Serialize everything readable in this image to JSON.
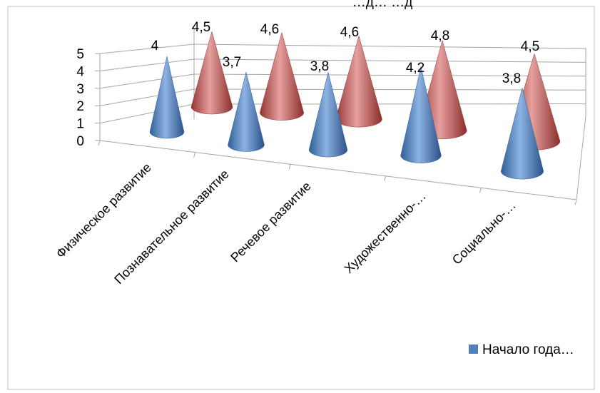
{
  "chart_data": {
    "type": "bar",
    "style": "3d-cone",
    "title": "…д… …д",
    "categories": [
      "Физическое развитие",
      "Познавательное развитие",
      "Речевое развитие",
      "Художественно-…",
      "Социально-…"
    ],
    "series": [
      {
        "name": "Начало года…",
        "color": "#4f81bd",
        "values": [
          4,
          3.7,
          3.8,
          4.2,
          3.8
        ]
      },
      {
        "color": "#c0504d",
        "values": [
          4.5,
          4.6,
          4.6,
          4.8,
          4.5
        ]
      }
    ],
    "data_labels": {
      "series_0": [
        "4",
        "3,7",
        "3,8",
        "4,2",
        "3,8"
      ],
      "series_1": [
        "4,5",
        "4,6",
        "4,6",
        "4,8",
        "4,5"
      ]
    },
    "y_ticks": [
      "0",
      "1",
      "2",
      "3",
      "4",
      "5"
    ],
    "ylim": [
      0,
      5
    ],
    "grid": true,
    "legend": {
      "placement": "right",
      "entries": [
        "Начало года…"
      ]
    }
  }
}
